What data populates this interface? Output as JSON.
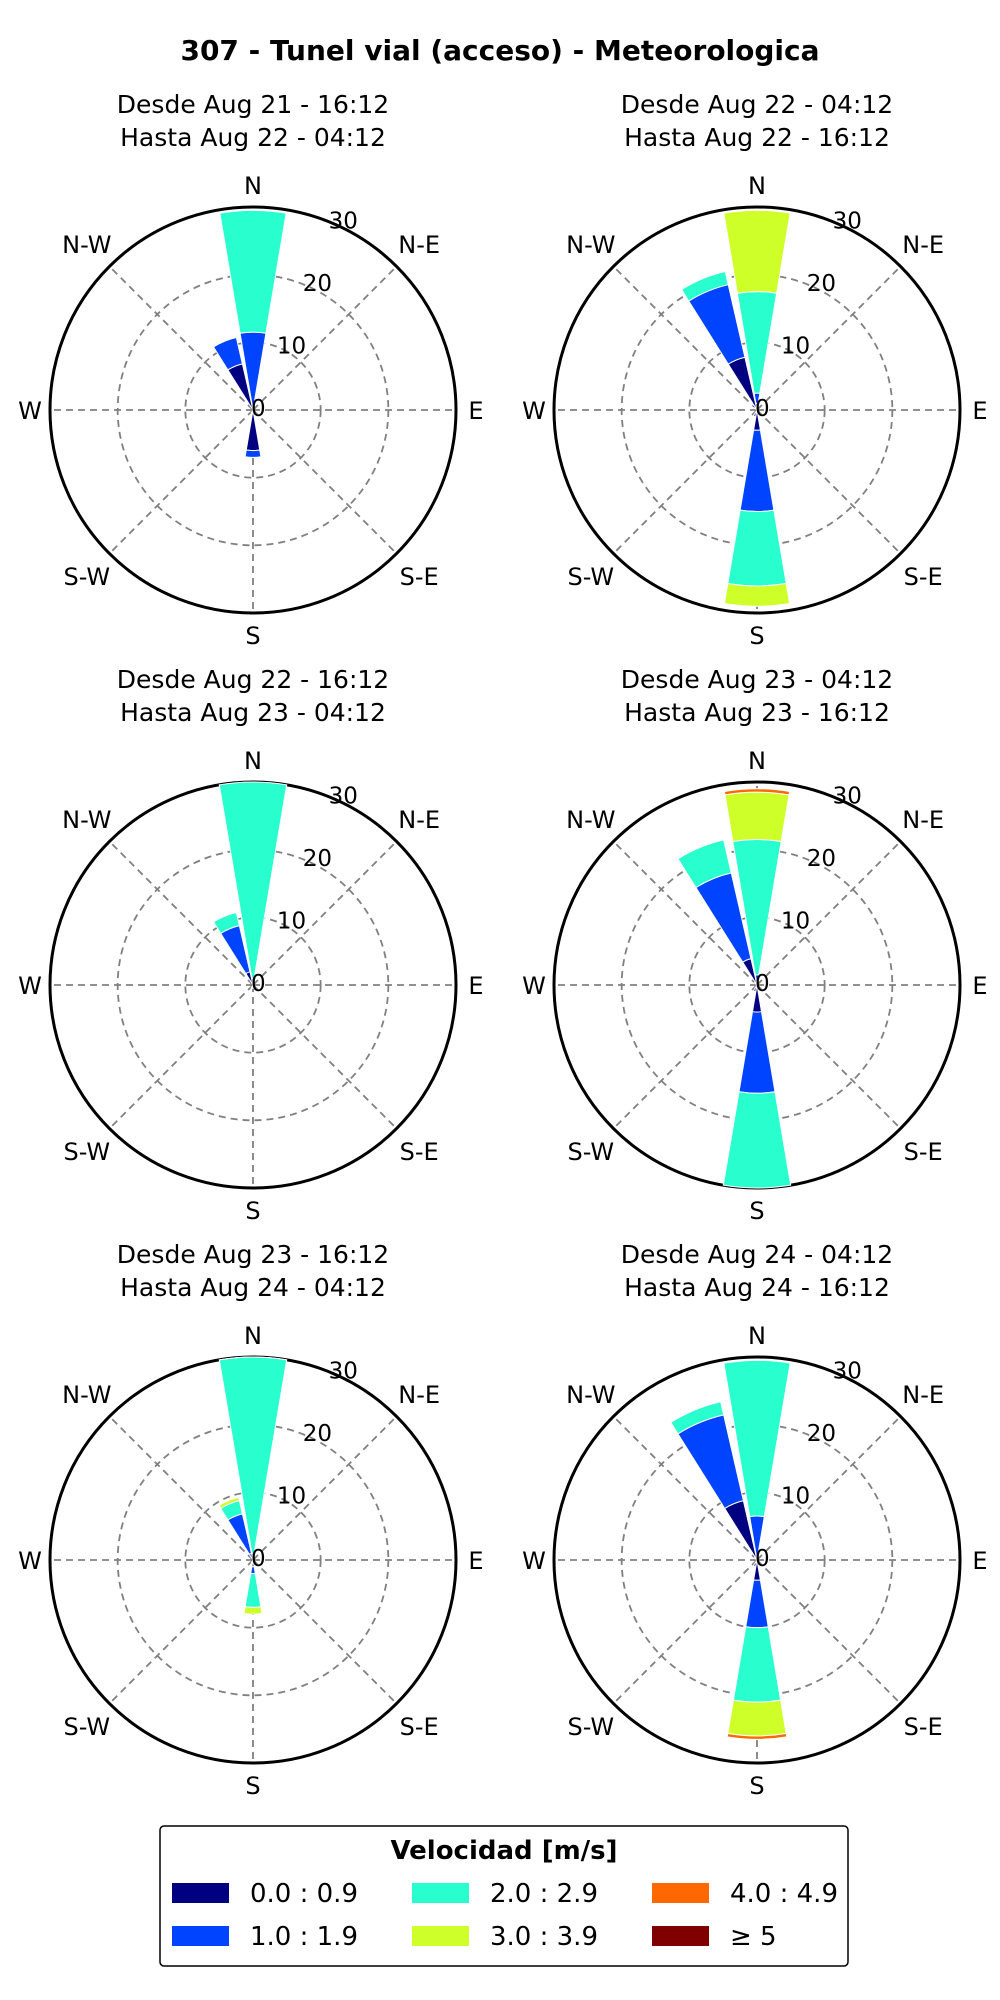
{
  "figure_title": "307 - Tunel vial (acceso) - Meteorologica",
  "legend": {
    "title": "Velocidad [m/s]",
    "entries": [
      {
        "label": "0.0 : 0.9",
        "color": "#000080"
      },
      {
        "label": "2.0 : 2.9",
        "color": "#29ffce"
      },
      {
        "label": "4.0 : 4.9",
        "color": "#ff6800"
      },
      {
        "label": "1.0 : 1.9",
        "color": "#0044ff"
      },
      {
        "label": "3.0 : 3.9",
        "color": "#ceff29"
      },
      {
        "label": "≥ 5",
        "color": "#800000"
      }
    ]
  },
  "chart_data": [
    {
      "type": "windrose",
      "subtitle": [
        "Desde Aug 21 - 16:12",
        "Hasta Aug 22 - 04:12"
      ],
      "directions": [
        "N",
        "N-E",
        "E",
        "S-E",
        "S",
        "S-W",
        "W",
        "N-W"
      ],
      "rings": [
        "0",
        "10",
        "20",
        "30"
      ],
      "rmax": 30,
      "bins": [
        "0.0 : 0.9",
        "1.0 : 1.9",
        "2.0 : 2.9",
        "3.0 : 3.9",
        "4.0 : 4.9",
        "≥ 5"
      ],
      "sectors": [
        {
          "dir": 0,
          "values": [
            0.5,
            11,
            18,
            0,
            0,
            0
          ]
        },
        {
          "dir": 337.5,
          "values": [
            7,
            4,
            0,
            0,
            0,
            0
          ]
        },
        {
          "dir": 180,
          "values": [
            6,
            1,
            0,
            0,
            0,
            0
          ]
        },
        {
          "dir": 202.5,
          "values": [
            0.5,
            0,
            0,
            0,
            0,
            0
          ]
        }
      ]
    },
    {
      "type": "windrose",
      "subtitle": [
        "Desde Aug 22 - 04:12",
        "Hasta Aug 22 - 16:12"
      ],
      "directions": [
        "N",
        "N-E",
        "E",
        "S-E",
        "S",
        "S-W",
        "W",
        "N-W"
      ],
      "rings": [
        "0",
        "10",
        "20",
        "30"
      ],
      "rmax": 30,
      "bins": [
        "0.0 : 0.9",
        "1.0 : 1.9",
        "2.0 : 2.9",
        "3.0 : 3.9",
        "4.0 : 4.9",
        "≥ 5"
      ],
      "sectors": [
        {
          "dir": 0,
          "values": [
            1,
            1.5,
            15,
            12,
            0,
            0
          ]
        },
        {
          "dir": 337.5,
          "values": [
            8,
            11,
            2,
            0,
            0,
            0
          ]
        },
        {
          "dir": 180,
          "values": [
            3,
            12,
            11,
            3,
            0,
            0
          ]
        },
        {
          "dir": 202.5,
          "values": [
            1,
            0,
            0,
            0,
            0,
            0
          ]
        },
        {
          "dir": 157.5,
          "values": [
            0.5,
            0,
            0,
            0,
            0,
            0
          ]
        },
        {
          "dir": 315,
          "values": [
            1,
            0,
            0,
            0,
            0,
            0
          ]
        }
      ]
    },
    {
      "type": "windrose",
      "subtitle": [
        "Desde Aug 22 - 16:12",
        "Hasta Aug 23 - 04:12"
      ],
      "directions": [
        "N",
        "N-E",
        "E",
        "S-E",
        "S",
        "S-W",
        "W",
        "N-W"
      ],
      "rings": [
        "0",
        "10",
        "20",
        "30"
      ],
      "rmax": 30,
      "bins": [
        "0.0 : 0.9",
        "1.0 : 1.9",
        "2.0 : 2.9",
        "3.0 : 3.9",
        "4.0 : 4.9",
        "≥ 5"
      ],
      "sectors": [
        {
          "dir": 0,
          "values": [
            0.5,
            0.5,
            29,
            0,
            0,
            0
          ]
        },
        {
          "dir": 337.5,
          "values": [
            2,
            7,
            2,
            0,
            0,
            0
          ]
        },
        {
          "dir": 180,
          "values": [
            0.5,
            0,
            0,
            0,
            0,
            0
          ]
        },
        {
          "dir": 202.5,
          "values": [
            0.5,
            0,
            0,
            0,
            0,
            0
          ]
        }
      ]
    },
    {
      "type": "windrose",
      "subtitle": [
        "Desde Aug 23 - 04:12",
        "Hasta Aug 23 - 16:12"
      ],
      "directions": [
        "N",
        "N-E",
        "E",
        "S-E",
        "S",
        "S-W",
        "W",
        "N-W"
      ],
      "rings": [
        "0",
        "10",
        "20",
        "30"
      ],
      "rmax": 30,
      "bins": [
        "0.0 : 0.9",
        "1.0 : 1.9",
        "2.0 : 2.9",
        "3.0 : 3.9",
        "4.0 : 4.9",
        "≥ 5"
      ],
      "sectors": [
        {
          "dir": 0,
          "values": [
            0.5,
            1,
            20,
            7,
            0.5,
            0
          ]
        },
        {
          "dir": 337.5,
          "values": [
            4,
            13,
            5,
            0,
            0,
            0
          ]
        },
        {
          "dir": 180,
          "values": [
            4,
            12,
            14,
            0,
            0,
            0
          ]
        },
        {
          "dir": 202.5,
          "values": [
            1,
            0,
            0,
            0,
            0,
            0
          ]
        },
        {
          "dir": 315,
          "values": [
            0.5,
            0,
            0,
            0,
            0,
            0
          ]
        }
      ]
    },
    {
      "type": "windrose",
      "subtitle": [
        "Desde Aug 23 - 16:12",
        "Hasta Aug 24 - 04:12"
      ],
      "directions": [
        "N",
        "N-E",
        "E",
        "S-E",
        "S",
        "S-W",
        "W",
        "N-W"
      ],
      "rings": [
        "0",
        "10",
        "20",
        "30"
      ],
      "rmax": 30,
      "bins": [
        "0.0 : 0.9",
        "1.0 : 1.9",
        "2.0 : 2.9",
        "3.0 : 3.9",
        "4.0 : 4.9",
        "≥ 5"
      ],
      "sectors": [
        {
          "dir": 0,
          "values": [
            0.5,
            0.5,
            29,
            0.5,
            0,
            0
          ]
        },
        {
          "dir": 337.5,
          "values": [
            1,
            6,
            2,
            0.5,
            0,
            0
          ]
        },
        {
          "dir": 180,
          "values": [
            1,
            1,
            5,
            1,
            0,
            0
          ]
        },
        {
          "dir": 202.5,
          "values": [
            0.5,
            0,
            0,
            0,
            0,
            0
          ]
        }
      ]
    },
    {
      "type": "windrose",
      "subtitle": [
        "Desde Aug 24 - 04:12",
        "Hasta Aug 24 - 16:12"
      ],
      "directions": [
        "N",
        "N-E",
        "E",
        "S-E",
        "S",
        "S-W",
        "W",
        "N-W"
      ],
      "rings": [
        "0",
        "10",
        "20",
        "30"
      ],
      "rmax": 30,
      "bins": [
        "0.0 : 0.9",
        "1.0 : 1.9",
        "2.0 : 2.9",
        "3.0 : 3.9",
        "4.0 : 4.9",
        "≥ 5"
      ],
      "sectors": [
        {
          "dir": 0,
          "values": [
            0.5,
            6,
            23,
            0,
            0,
            0
          ]
        },
        {
          "dir": 337.5,
          "values": [
            9,
            13,
            2,
            0,
            0,
            0
          ]
        },
        {
          "dir": 180,
          "values": [
            3,
            7,
            11,
            5,
            0.5,
            0
          ]
        },
        {
          "dir": 202.5,
          "values": [
            1,
            0,
            0,
            0,
            0,
            0
          ]
        },
        {
          "dir": 315,
          "values": [
            0.5,
            0,
            0,
            0,
            0,
            0
          ]
        }
      ]
    }
  ]
}
